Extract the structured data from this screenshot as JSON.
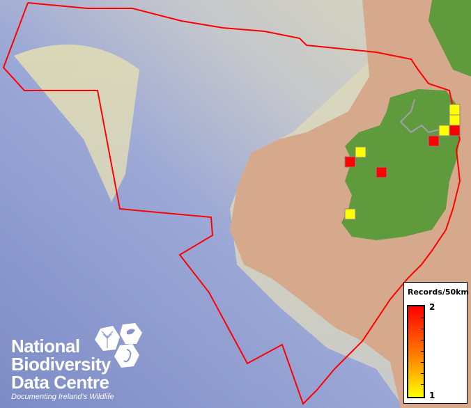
{
  "map": {
    "colors": {
      "sea_deep": "#7f8fcc",
      "sea_shelf": "#c9c9c4",
      "shelf_yellow": "#e8e3b4",
      "land_other": "#d9a98b",
      "ireland_land": "#5f9a3d",
      "eez_boundary": "#ff0000",
      "border_line": "#a0a0a8"
    },
    "records": [
      {
        "count": 1
      },
      {
        "count": 1
      },
      {
        "count": 1
      },
      {
        "count": 2
      },
      {
        "count": 2
      },
      {
        "count": 1
      },
      {
        "count": 2
      },
      {
        "count": 2
      },
      {
        "count": 1
      }
    ]
  },
  "legend": {
    "title": "Records/50km",
    "max_label": "2",
    "min_label": "1",
    "max_color": "#ff0000",
    "min_color": "#ffff00"
  },
  "logo": {
    "line1": "National",
    "line2": "Biodiversity",
    "line3": "Data Centre",
    "tagline": "Documenting Ireland's Wildlife"
  }
}
